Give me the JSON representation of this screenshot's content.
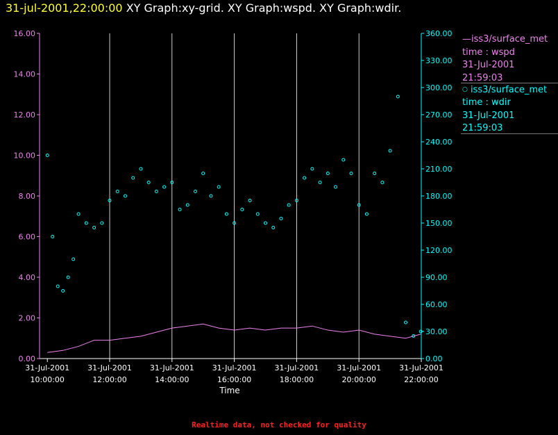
{
  "header": {
    "timestamp": "31-jul-2001,22:00:00",
    "graph_titles": "XY Graph:xy-grid.  XY Graph:wspd.  XY Graph:wdir."
  },
  "legend": {
    "wspd": {
      "line1": "—iss3/surface_met",
      "line2": "time : wspd",
      "line3": "31-Jul-2001",
      "line4": "21:59:03"
    },
    "wdir": {
      "line1": "iss3/surface_met",
      "line2": "time : wdir",
      "line3": "31-Jul-2001",
      "line4": "21:59:03"
    }
  },
  "footer": "Realtime data, not checked for quality",
  "colors": {
    "wspd": "#ee82ee",
    "wdir": "#00ffff",
    "grid": "#ffffff",
    "timestamp": "#ffff33",
    "footer": "#ff2020"
  },
  "chart_data": {
    "type": "line",
    "title": "",
    "xlabel": "Time",
    "x_range": [
      "31-Jul-2001 09:45:00",
      "31-Jul-2001 22:00:00"
    ],
    "x_ticks": [
      {
        "date": "31-Jul-2001",
        "time": "10:00:00"
      },
      {
        "date": "31-Jul-2001",
        "time": "12:00:00"
      },
      {
        "date": "31-Jul-2001",
        "time": "14:00:00"
      },
      {
        "date": "31-Jul-2001",
        "time": "16:00:00"
      },
      {
        "date": "31-Jul-2001",
        "time": "18:00:00"
      },
      {
        "date": "31-Jul-2001",
        "time": "20:00:00"
      },
      {
        "date": "31-Jul-2001",
        "time": "22:00:00"
      }
    ],
    "y_left": {
      "ylim": [
        0,
        16
      ],
      "ticks": [
        "0.00",
        "2.00",
        "4.00",
        "6.00",
        "8.00",
        "10.00",
        "12.00",
        "14.00",
        "16.00"
      ]
    },
    "y_right": {
      "ylim": [
        0,
        360
      ],
      "ticks": [
        "0.00",
        "30.00",
        "60.00",
        "90.00",
        "120.00",
        "150.00",
        "180.00",
        "210.00",
        "240.00",
        "270.00",
        "300.00",
        "330.00",
        "360.00"
      ]
    },
    "grid": "vertical lines at hourly ticks",
    "series": [
      {
        "name": "iss3/surface_met time : wspd",
        "type": "line",
        "axis": "left",
        "x": [
          "10:00",
          "10:30",
          "11:00",
          "11:30",
          "12:00",
          "12:30",
          "13:00",
          "13:30",
          "14:00",
          "14:30",
          "15:00",
          "15:30",
          "16:00",
          "16:30",
          "17:00",
          "17:30",
          "18:00",
          "18:30",
          "19:00",
          "19:30",
          "20:00",
          "20:30",
          "21:00",
          "21:30",
          "21:59"
        ],
        "values": [
          0.3,
          0.4,
          0.6,
          0.9,
          0.9,
          1.0,
          1.1,
          1.3,
          1.5,
          1.6,
          1.7,
          1.5,
          1.4,
          1.5,
          1.4,
          1.5,
          1.5,
          1.6,
          1.4,
          1.3,
          1.4,
          1.2,
          1.1,
          1.0,
          1.2
        ]
      },
      {
        "name": "iss3/surface_met time : wdir",
        "type": "scatter",
        "axis": "right",
        "x": [
          "10:00",
          "10:10",
          "10:20",
          "10:30",
          "10:40",
          "10:50",
          "11:00",
          "11:15",
          "11:30",
          "11:45",
          "12:00",
          "12:15",
          "12:30",
          "12:45",
          "13:00",
          "13:15",
          "13:30",
          "13:45",
          "14:00",
          "14:15",
          "14:30",
          "14:45",
          "15:00",
          "15:15",
          "15:30",
          "15:45",
          "16:00",
          "16:15",
          "16:30",
          "16:45",
          "17:00",
          "17:15",
          "17:30",
          "17:45",
          "18:00",
          "18:15",
          "18:30",
          "18:45",
          "19:00",
          "19:15",
          "19:30",
          "19:45",
          "20:00",
          "20:15",
          "20:30",
          "20:45",
          "21:00",
          "21:15",
          "21:30",
          "21:45",
          "21:59"
        ],
        "values": [
          225,
          135,
          80,
          75,
          90,
          110,
          160,
          150,
          145,
          150,
          175,
          185,
          180,
          200,
          210,
          195,
          185,
          190,
          195,
          165,
          170,
          185,
          205,
          180,
          190,
          160,
          150,
          165,
          175,
          160,
          150,
          145,
          155,
          170,
          175,
          200,
          210,
          195,
          205,
          190,
          220,
          205,
          170,
          160,
          205,
          195,
          230,
          290,
          40,
          25,
          30
        ]
      }
    ]
  }
}
